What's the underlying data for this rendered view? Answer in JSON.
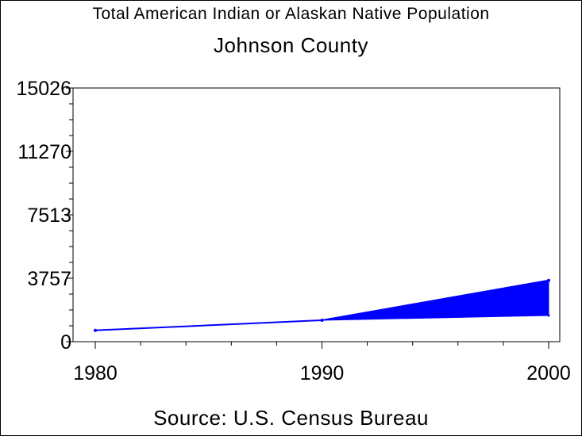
{
  "titles": {
    "line1": "Total American Indian or Alaskan Native Population",
    "line2": "Johnson County"
  },
  "footnote": "Source: U.S. Census Bureau",
  "colors": {
    "series": "#0000ff",
    "axis": "#000000",
    "background": "#ffffff"
  },
  "chart_data": {
    "type": "area",
    "title": "Total American Indian or Alaskan Native Population",
    "subtitle": "Johnson County",
    "xlabel": "",
    "ylabel": "",
    "x": [
      1980,
      1990,
      2000
    ],
    "xlim": [
      1980,
      2000
    ],
    "ylim": [
      0,
      15026
    ],
    "yticks": [
      "0",
      "3757",
      "7513",
      "11270",
      "15026"
    ],
    "xticks": [
      "1980",
      "1990",
      "2000"
    ],
    "series": [
      {
        "values": [
          670,
          1270,
          3630
        ]
      }
    ],
    "band": {
      "x": [
        1990,
        2000
      ],
      "lower": [
        1270,
        1550
      ],
      "upper": [
        1270,
        3630
      ]
    },
    "grid": false,
    "legend": "none"
  }
}
